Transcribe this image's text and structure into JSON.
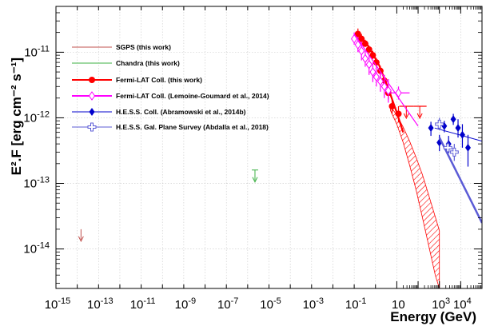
{
  "chart_data": {
    "type": "scatter",
    "title": "",
    "xlabel": "Energy (GeV)",
    "ylabel": "E².F [erg cm⁻² s⁻¹]",
    "xscale": "log",
    "yscale": "log",
    "xlim": [
      1e-15,
      100000.0
    ],
    "ylim": [
      2.5e-15,
      5e-11
    ],
    "grid": true,
    "legend_position": "top-left",
    "x_ticks": [
      {
        "value": 1e-15,
        "base": "10",
        "exp": "-15"
      },
      {
        "value": 1e-13,
        "base": "10",
        "exp": "-13"
      },
      {
        "value": 1e-11,
        "base": "10",
        "exp": "-11"
      },
      {
        "value": 1e-09,
        "base": "10",
        "exp": "-9"
      },
      {
        "value": 1e-07,
        "base": "10",
        "exp": "-7"
      },
      {
        "value": 1e-05,
        "base": "10",
        "exp": "-5"
      },
      {
        "value": 0.001,
        "base": "10",
        "exp": "-3"
      },
      {
        "value": 0.1,
        "base": "10",
        "exp": "-1"
      },
      {
        "value": 10,
        "base": "10",
        "exp": ""
      },
      {
        "value": 1000,
        "base": "10",
        "exp": "3"
      },
      {
        "value": 10000,
        "base": "10",
        "exp": "4"
      }
    ],
    "y_ticks": [
      {
        "value": 1e-14,
        "base": "10",
        "exp": "-14"
      },
      {
        "value": 1e-13,
        "base": "10",
        "exp": "-13"
      },
      {
        "value": 1e-12,
        "base": "10",
        "exp": "-12"
      },
      {
        "value": 1e-11,
        "base": "10",
        "exp": "-11"
      }
    ],
    "series": [
      {
        "name": "SGPS (this work)",
        "color": "#c0504d",
        "kind": "upper_limit",
        "points": [
          {
            "x": 1.5e-14,
            "y": 2e-14
          }
        ]
      },
      {
        "name": "Chandra (this work)",
        "color": "#3cb043",
        "kind": "upper_limit",
        "points": [
          {
            "x": 2.2e-06,
            "y": 1.6e-13
          }
        ]
      },
      {
        "name": "Fermi-LAT Coll. (this work)",
        "color": "#ff0000",
        "kind": "points",
        "marker": "filled-circle",
        "points": [
          {
            "x": 0.15,
            "y": 1.9e-11,
            "ylo": 1.6e-11,
            "yhi": 2.3e-11
          },
          {
            "x": 0.22,
            "y": 1.6e-11,
            "ylo": 1.4e-11,
            "yhi": 1.9e-11
          },
          {
            "x": 0.33,
            "y": 1.35e-11,
            "ylo": 1.2e-11,
            "yhi": 1.55e-11
          },
          {
            "x": 0.5,
            "y": 1.1e-11,
            "ylo": 9.5e-12,
            "yhi": 1.25e-11
          },
          {
            "x": 0.75,
            "y": 9e-12,
            "ylo": 7.8e-12,
            "yhi": 1.05e-11
          },
          {
            "x": 1.1,
            "y": 7e-12,
            "ylo": 6e-12,
            "yhi": 8.2e-12
          },
          {
            "x": 1.7,
            "y": 5.2e-12,
            "ylo": 4.3e-12,
            "yhi": 6.2e-12
          },
          {
            "x": 2.6,
            "y": 3.7e-12,
            "ylo": 3e-12,
            "yhi": 4.5e-12
          },
          {
            "x": 4.0,
            "y": 2.4e-12,
            "ylo": 1.9e-12,
            "yhi": 3e-12
          },
          {
            "x": 6.0,
            "y": 1.5e-12,
            "ylo": 1.15e-12,
            "yhi": 1.95e-12
          },
          {
            "x": 12,
            "y": 1.15e-12,
            "ylo": 8.5e-13,
            "yhi": 1.5e-12
          },
          {
            "x": 28,
            "y": 1.5e-12,
            "xlo": 13,
            "xhi": 60,
            "ul": true
          },
          {
            "x": 120,
            "y": 1.5e-12,
            "xlo": 60,
            "xhi": 250,
            "ul": true
          }
        ],
        "model": {
          "x": [
            0.15,
            0.5,
            1.5,
            4,
            10,
            20
          ],
          "y": [
            2e-11,
            1.2e-11,
            6.3e-12,
            2.8e-12,
            1.2e-12,
            6e-13
          ]
        }
      },
      {
        "name": "Fermi-LAT Coll. (Lemoine-Goumard et al., 2014)",
        "color": "#ff00ff",
        "kind": "points",
        "marker": "open-diamond",
        "points": [
          {
            "x": 0.1,
            "y": 1.6e-11,
            "ylo": 1.3e-11,
            "yhi": 2e-11
          },
          {
            "x": 0.15,
            "y": 1.3e-11,
            "ylo": 1e-11,
            "yhi": 1.7e-11
          },
          {
            "x": 0.22,
            "y": 1.05e-11,
            "ylo": 7.5e-12,
            "yhi": 1.45e-11
          },
          {
            "x": 0.33,
            "y": 8e-12,
            "ylo": 6e-12,
            "yhi": 1.05e-11
          },
          {
            "x": 0.5,
            "y": 6.5e-12,
            "ylo": 4.5e-12,
            "yhi": 9e-12
          },
          {
            "x": 0.75,
            "y": 5e-12,
            "ylo": 3.5e-12,
            "yhi": 7e-12
          },
          {
            "x": 1.1,
            "y": 4.2e-12,
            "ylo": 3e-12,
            "yhi": 6e-12
          },
          {
            "x": 1.7,
            "y": 3.6e-12,
            "ylo": 2.5e-12,
            "yhi": 5e-12
          },
          {
            "x": 2.6,
            "y": 3e-12,
            "ylo": 2e-12,
            "yhi": 4.5e-12
          },
          {
            "x": 4.0,
            "y": 2.6e-12,
            "ylo": 1.7e-12,
            "yhi": 3.9e-12
          },
          {
            "x": 12,
            "y": 2.4e-12,
            "xlo": 4.5,
            "xhi": 40,
            "ylo": 1.9e-12,
            "yhi": 3e-12
          }
        ],
        "model": {
          "x": [
            0.1,
            1,
            10,
            100
          ],
          "y": [
            1.9e-11,
            6.5e-12,
            2.2e-12,
            7.5e-13
          ]
        }
      },
      {
        "name": "H.E.S.S. Coll. (Abramowski et al., 2014b)",
        "color": "#0000cc",
        "kind": "points",
        "marker": "filled-diamond",
        "points": [
          {
            "x": 400,
            "y": 7e-13,
            "ylo": 5.3e-13,
            "yhi": 8.7e-13
          },
          {
            "x": 1000,
            "y": 4.2e-13,
            "ylo": 3.1e-13,
            "yhi": 5.5e-13
          },
          {
            "x": 1700,
            "y": 7.5e-13,
            "ylo": 6e-13,
            "yhi": 9e-13
          },
          {
            "x": 2700,
            "y": 4e-13,
            "ylo": 2.9e-13,
            "yhi": 5.3e-13
          },
          {
            "x": 4500,
            "y": 9.5e-13,
            "ylo": 7.8e-13,
            "yhi": 1.15e-12
          },
          {
            "x": 7500,
            "y": 7e-13,
            "ylo": 5e-13,
            "yhi": 9.5e-13
          },
          {
            "x": 12000,
            "y": 5.5e-13,
            "ylo": 3.5e-13,
            "yhi": 8e-13
          },
          {
            "x": 22000,
            "y": 3.5e-13,
            "ylo": 1.8e-13,
            "yhi": 5.5e-13
          }
        ],
        "model": {
          "x": [
            600,
            100000
          ],
          "y": [
            7e-13,
            4.4e-13
          ]
        }
      },
      {
        "name": "H.E.S.S. Gal. Plane Survey (Abdalla et al., 2018)",
        "color": "#5b5bd6",
        "kind": "points",
        "marker": "open-cross",
        "points": [
          {
            "x": 1000,
            "y": 8e-13,
            "ylo": 6.5e-13,
            "yhi": 1e-12
          },
          {
            "x": 2500,
            "y": 3.5e-13,
            "ylo": 2.8e-13,
            "yhi": 4.4e-13
          },
          {
            "x": 5000,
            "y": 3e-13,
            "ylo": 2.2e-13,
            "yhi": 4e-13
          }
        ],
        "model": {
          "x": [
            1000,
            100000
          ],
          "y": [
            5e-13,
            2.5e-14
          ]
        }
      }
    ],
    "sgps_band": {
      "color": "#ff0000",
      "x": [
        5,
        10,
        20,
        40,
        80,
        160,
        320,
        640,
        1000
      ],
      "ylo": [
        1.3e-12,
        8e-13,
        4.2e-13,
        1.9e-13,
        8e-14,
        3e-14,
        1.1e-14,
        4e-15,
        2.4e-15
      ],
      "yhi": [
        1.5e-12,
        1.1e-12,
        7.2e-13,
        4.4e-13,
        2.5e-13,
        1.35e-13,
        6.5e-14,
        3.1e-14,
        1.9e-14
      ]
    }
  }
}
